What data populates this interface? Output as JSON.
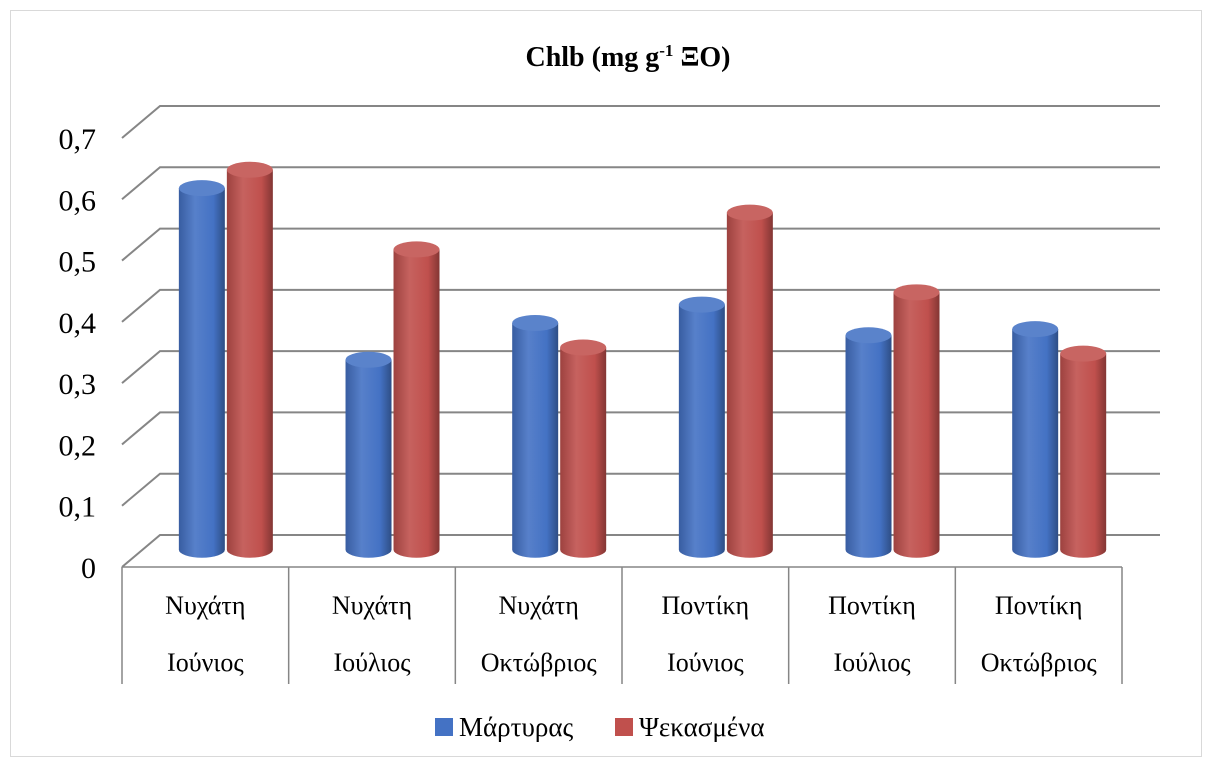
{
  "chart_data": {
    "type": "bar",
    "title": {
      "main": "Chlb (mg g",
      "sup": "-1",
      "tail": " ΞΟ)"
    },
    "categories": [
      [
        "Νυχάτη",
        "Ιούνιος"
      ],
      [
        "Νυχάτη",
        "Ιούλιος"
      ],
      [
        "Νυχάτη",
        "Οκτώβριος"
      ],
      [
        "Ποντίκη",
        "Ιούνιος"
      ],
      [
        "Ποντίκη",
        "Ιούλιος"
      ],
      [
        "Ποντίκη",
        "Οκτώβριος"
      ]
    ],
    "series": [
      {
        "name": "Μάρτυρας",
        "color": "#4472c4",
        "values": [
          0.59,
          0.31,
          0.37,
          0.4,
          0.35,
          0.36
        ]
      },
      {
        "name": "Ψεκασμένα",
        "color": "#c0504d",
        "values": [
          0.62,
          0.49,
          0.33,
          0.55,
          0.42,
          0.32
        ]
      }
    ],
    "yticks": [
      "0",
      "0,1",
      "0,2",
      "0,3",
      "0,4",
      "0,5",
      "0,6",
      "0,7"
    ],
    "ylim": [
      0,
      0.7
    ],
    "grid": true,
    "legend": "bottom",
    "style": "3d-cylinder"
  }
}
